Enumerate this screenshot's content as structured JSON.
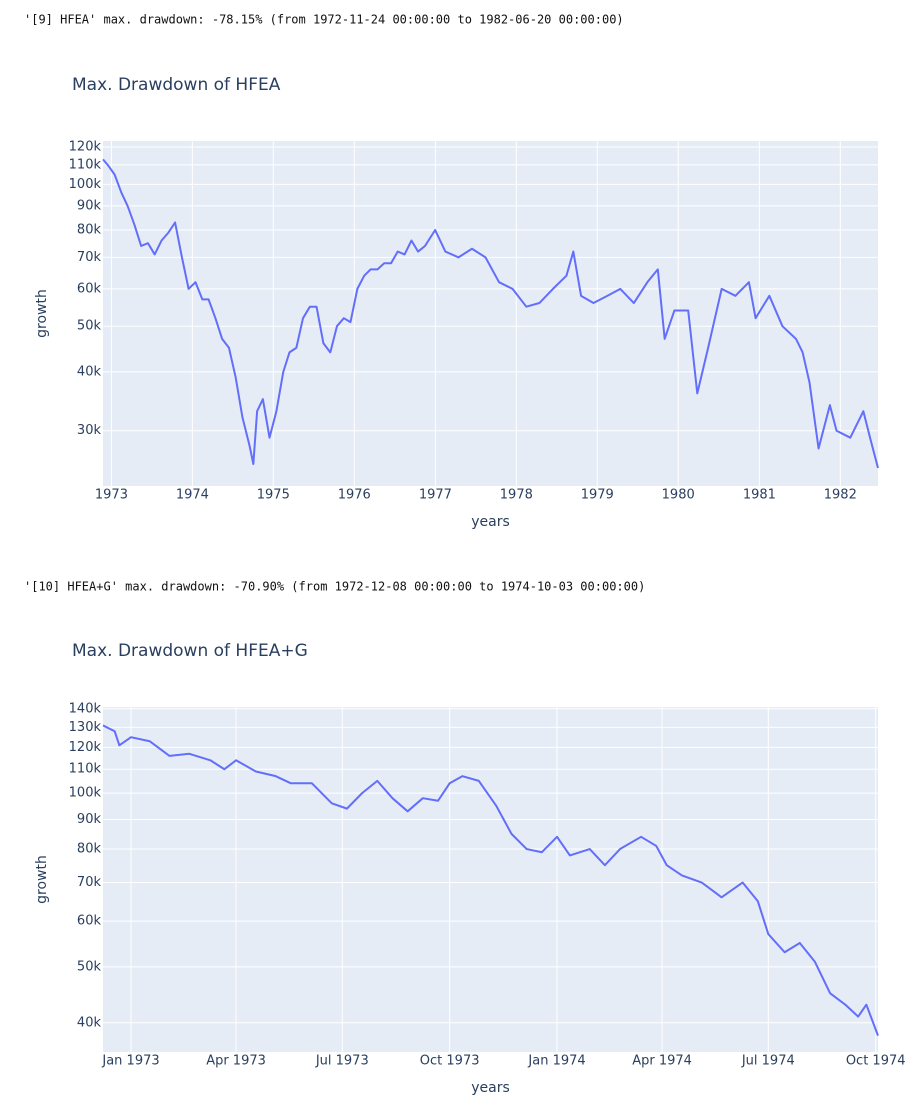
{
  "notes": [
    "'[9] HFEA' max. drawdown: -78.15% (from 1972-11-24 00:00:00 to 1982-06-20 00:00:00)",
    "'[10] HFEA+G' max. drawdown: -70.90% (from 1972-12-08 00:00:00 to 1974-10-03 00:00:00)"
  ],
  "chart_data": [
    {
      "type": "line",
      "title": "Max. Drawdown of HFEA",
      "x_label": "years",
      "y_label": "growth",
      "log_y": true,
      "grid": true,
      "xlim": [
        "1972-11-24",
        "1982-06-20"
      ],
      "ylim": [
        22900,
        123600
      ],
      "xticks": [
        {
          "value": "1973-01-01",
          "label": "1973"
        },
        {
          "value": "1974-01-01",
          "label": "1974"
        },
        {
          "value": "1975-01-01",
          "label": "1975"
        },
        {
          "value": "1976-01-01",
          "label": "1976"
        },
        {
          "value": "1977-01-01",
          "label": "1977"
        },
        {
          "value": "1978-01-01",
          "label": "1978"
        },
        {
          "value": "1979-01-01",
          "label": "1979"
        },
        {
          "value": "1980-01-01",
          "label": "1980"
        },
        {
          "value": "1981-01-01",
          "label": "1981"
        },
        {
          "value": "1982-01-01",
          "label": "1982"
        }
      ],
      "yticks": [
        {
          "value": 30000,
          "label": "30k"
        },
        {
          "value": 40000,
          "label": "40k"
        },
        {
          "value": 50000,
          "label": "50k"
        },
        {
          "value": 60000,
          "label": "60k"
        },
        {
          "value": 70000,
          "label": "70k"
        },
        {
          "value": 80000,
          "label": "80k"
        },
        {
          "value": 90000,
          "label": "90k"
        },
        {
          "value": 100000,
          "label": "100k"
        },
        {
          "value": 110000,
          "label": "110k"
        },
        {
          "value": 120000,
          "label": "120k"
        }
      ],
      "x": [
        "1972-11-24",
        "1972-12-15",
        "1973-01-15",
        "1973-02-15",
        "1973-03-15",
        "1973-04-15",
        "1973-05-15",
        "1973-06-15",
        "1973-07-15",
        "1973-08-15",
        "1973-09-15",
        "1973-10-15",
        "1973-11-15",
        "1973-12-15",
        "1974-01-15",
        "1974-02-15",
        "1974-03-15",
        "1974-04-15",
        "1974-05-15",
        "1974-06-15",
        "1974-07-15",
        "1974-08-15",
        "1974-09-15",
        "1974-10-03",
        "1974-10-20",
        "1974-11-15",
        "1974-12-15",
        "1975-01-15",
        "1975-02-15",
        "1975-03-15",
        "1975-04-15",
        "1975-05-15",
        "1975-06-15",
        "1975-07-15",
        "1975-08-15",
        "1975-09-15",
        "1975-10-15",
        "1975-11-15",
        "1975-12-15",
        "1976-01-15",
        "1976-02-15",
        "1976-03-15",
        "1976-04-15",
        "1976-05-15",
        "1976-06-15",
        "1976-07-15",
        "1976-08-15",
        "1976-09-15",
        "1976-10-15",
        "1976-11-15",
        "1976-12-31",
        "1977-02-15",
        "1977-04-15",
        "1977-06-15",
        "1977-08-15",
        "1977-10-15",
        "1977-12-15",
        "1978-02-15",
        "1978-04-15",
        "1978-06-15",
        "1978-08-15",
        "1978-09-15",
        "1978-10-20",
        "1978-12-15",
        "1979-02-15",
        "1979-04-15",
        "1979-06-15",
        "1979-08-15",
        "1979-10-01",
        "1979-11-01",
        "1979-12-15",
        "1980-02-15",
        "1980-03-27",
        "1980-05-15",
        "1980-07-15",
        "1980-09-15",
        "1980-11-15",
        "1980-12-15",
        "1981-02-15",
        "1981-04-15",
        "1981-06-15",
        "1981-07-15",
        "1981-08-15",
        "1981-09-25",
        "1981-11-15",
        "1981-12-15",
        "1982-02-15",
        "1982-04-15",
        "1982-05-15",
        "1982-06-20"
      ],
      "series": [
        {
          "color": "#636efa",
          "values": [
            113000,
            110000,
            105000,
            96000,
            90000,
            82000,
            74000,
            75000,
            71000,
            76000,
            79000,
            83000,
            70000,
            60000,
            62000,
            57000,
            57000,
            52000,
            47000,
            45000,
            39000,
            32000,
            28000,
            25500,
            33000,
            35000,
            29000,
            33000,
            40000,
            44000,
            45000,
            52000,
            55000,
            55000,
            46000,
            44000,
            50000,
            52000,
            51000,
            60000,
            64000,
            66000,
            66000,
            68000,
            68000,
            72000,
            71000,
            76000,
            72000,
            74000,
            80000,
            72000,
            70000,
            73000,
            70000,
            62000,
            60000,
            55000,
            56000,
            60000,
            64000,
            72000,
            58000,
            56000,
            58000,
            60000,
            56000,
            62000,
            66000,
            47000,
            54000,
            54000,
            36000,
            45000,
            60000,
            58000,
            62000,
            52000,
            58000,
            50000,
            47000,
            44000,
            38000,
            27500,
            34000,
            30000,
            29000,
            33000,
            29000,
            25000
          ]
        }
      ]
    },
    {
      "type": "line",
      "title": "Max. Drawdown of HFEA+G",
      "x_label": "years",
      "y_label": "growth",
      "log_y": true,
      "grid": true,
      "xlim": [
        "1972-12-08",
        "1974-10-03"
      ],
      "ylim": [
        35600,
        141000
      ],
      "xticks": [
        {
          "value": "1973-01-01",
          "label": "Jan 1973"
        },
        {
          "value": "1973-04-01",
          "label": "Apr 1973"
        },
        {
          "value": "1973-07-01",
          "label": "Jul 1973"
        },
        {
          "value": "1973-10-01",
          "label": "Oct 1973"
        },
        {
          "value": "1974-01-01",
          "label": "Jan 1974"
        },
        {
          "value": "1974-04-01",
          "label": "Apr 1974"
        },
        {
          "value": "1974-07-01",
          "label": "Jul 1974"
        },
        {
          "value": "1974-10-01",
          "label": "Oct 1974"
        }
      ],
      "yticks": [
        {
          "value": 40000,
          "label": "40k"
        },
        {
          "value": 50000,
          "label": "50k"
        },
        {
          "value": 60000,
          "label": "60k"
        },
        {
          "value": 70000,
          "label": "70k"
        },
        {
          "value": 80000,
          "label": "80k"
        },
        {
          "value": 90000,
          "label": "90k"
        },
        {
          "value": 100000,
          "label": "100k"
        },
        {
          "value": 110000,
          "label": "110k"
        },
        {
          "value": 120000,
          "label": "120k"
        },
        {
          "value": 130000,
          "label": "130k"
        },
        {
          "value": 140000,
          "label": "140k"
        }
      ],
      "x": [
        "1972-12-08",
        "1972-12-18",
        "1972-12-22",
        "1973-01-01",
        "1973-01-17",
        "1973-02-03",
        "1973-02-20",
        "1973-03-10",
        "1973-03-22",
        "1973-04-01",
        "1973-04-18",
        "1973-05-05",
        "1973-05-18",
        "1973-06-05",
        "1973-06-22",
        "1973-07-05",
        "1973-07-18",
        "1973-07-31",
        "1973-08-13",
        "1973-08-26",
        "1973-09-08",
        "1973-09-21",
        "1973-10-01",
        "1973-10-12",
        "1973-10-26",
        "1973-11-10",
        "1973-11-23",
        "1973-12-06",
        "1973-12-19",
        "1974-01-01",
        "1974-01-12",
        "1974-01-29",
        "1974-02-11",
        "1974-02-24",
        "1974-03-14",
        "1974-03-27",
        "1974-04-05",
        "1974-04-18",
        "1974-05-05",
        "1974-05-22",
        "1974-06-09",
        "1974-06-22",
        "1974-07-01",
        "1974-07-15",
        "1974-07-28",
        "1974-08-10",
        "1974-08-23",
        "1974-09-05",
        "1974-09-16",
        "1974-09-23",
        "1974-10-03"
      ],
      "series": [
        {
          "color": "#636efa",
          "values": [
            131000,
            128000,
            121000,
            125000,
            123000,
            116000,
            117000,
            114000,
            110000,
            114000,
            109000,
            107000,
            104000,
            104000,
            96000,
            94000,
            100000,
            105000,
            98000,
            93000,
            98000,
            97000,
            104000,
            107000,
            105000,
            95000,
            85000,
            80000,
            79000,
            84000,
            78000,
            80000,
            75000,
            80000,
            84000,
            81000,
            75000,
            72000,
            70000,
            66000,
            70000,
            65000,
            57000,
            53000,
            55000,
            51000,
            45000,
            43000,
            41000,
            43000,
            38000
          ]
        }
      ]
    }
  ]
}
